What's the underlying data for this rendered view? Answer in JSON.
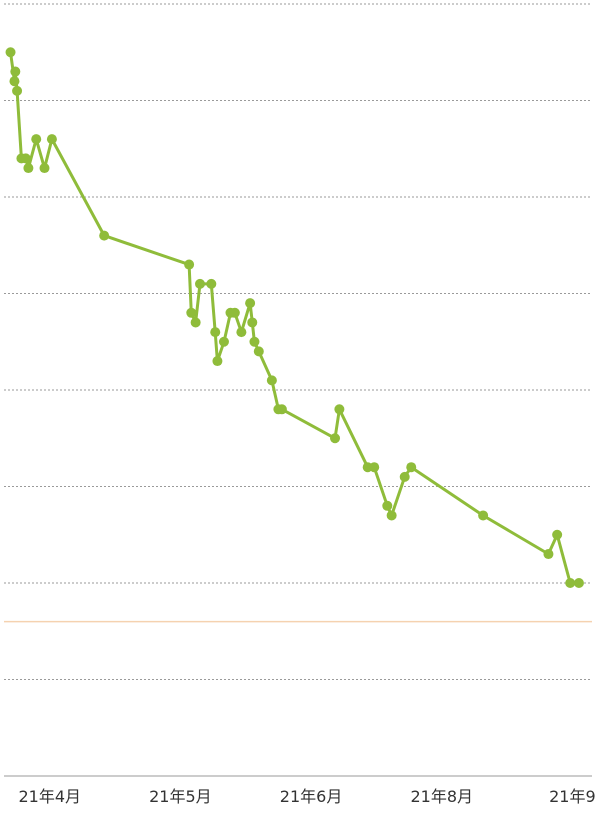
{
  "chart_data": {
    "type": "line",
    "title": "",
    "xlabel": "",
    "ylabel": "",
    "grid": true,
    "legend": "none",
    "line_color": "#8fbc3a",
    "reference_line_color": "#f5d2b0",
    "grid_color": "#9a9a9a",
    "x_ticks": [
      {
        "label": "21年4月",
        "x": 10.5
      },
      {
        "label": "21年5月",
        "x": 40.5
      },
      {
        "label": "21年6月",
        "x": 70.5
      },
      {
        "label": "21年8月",
        "x": 100.5
      },
      {
        "label": "21年9",
        "x": 130.5
      }
    ],
    "xlim": [
      0,
      135
    ],
    "ylim": [
      0,
      8
    ],
    "y_gridlines": [
      0,
      1,
      2,
      3,
      4,
      5,
      6,
      7,
      8
    ],
    "reference_line": 1.6,
    "series": [
      {
        "points": [
          [
            1.5,
            7.5
          ],
          [
            2.4,
            7.2
          ],
          [
            2.6,
            7.3
          ],
          [
            3.0,
            7.1
          ],
          [
            4.0,
            6.4
          ],
          [
            5.0,
            6.4
          ],
          [
            5.6,
            6.3
          ],
          [
            7.4,
            6.6
          ],
          [
            9.3,
            6.3
          ],
          [
            11.0,
            6.6
          ],
          [
            23.0,
            5.6
          ],
          [
            42.5,
            5.3
          ],
          [
            43.0,
            4.8
          ],
          [
            44.0,
            4.7
          ],
          [
            45.0,
            5.1
          ],
          [
            47.6,
            5.1
          ],
          [
            48.5,
            4.6
          ],
          [
            49.0,
            4.3
          ],
          [
            50.5,
            4.5
          ],
          [
            52.0,
            4.8
          ],
          [
            53.0,
            4.8
          ],
          [
            54.5,
            4.6
          ],
          [
            56.5,
            4.9
          ],
          [
            57.0,
            4.7
          ],
          [
            57.5,
            4.5
          ],
          [
            58.5,
            4.4
          ],
          [
            61.5,
            4.1
          ],
          [
            63.0,
            3.8
          ],
          [
            63.8,
            3.8
          ],
          [
            76.0,
            3.5
          ],
          [
            77.0,
            3.8
          ],
          [
            83.5,
            3.2
          ],
          [
            85.0,
            3.2
          ],
          [
            88.0,
            2.8
          ],
          [
            89.0,
            2.7
          ],
          [
            92.0,
            3.1
          ],
          [
            93.5,
            3.2
          ],
          [
            110.0,
            2.7
          ],
          [
            125.0,
            2.3
          ],
          [
            127.0,
            2.5
          ],
          [
            130.0,
            2.0
          ],
          [
            132.0,
            2.0
          ]
        ]
      }
    ]
  }
}
